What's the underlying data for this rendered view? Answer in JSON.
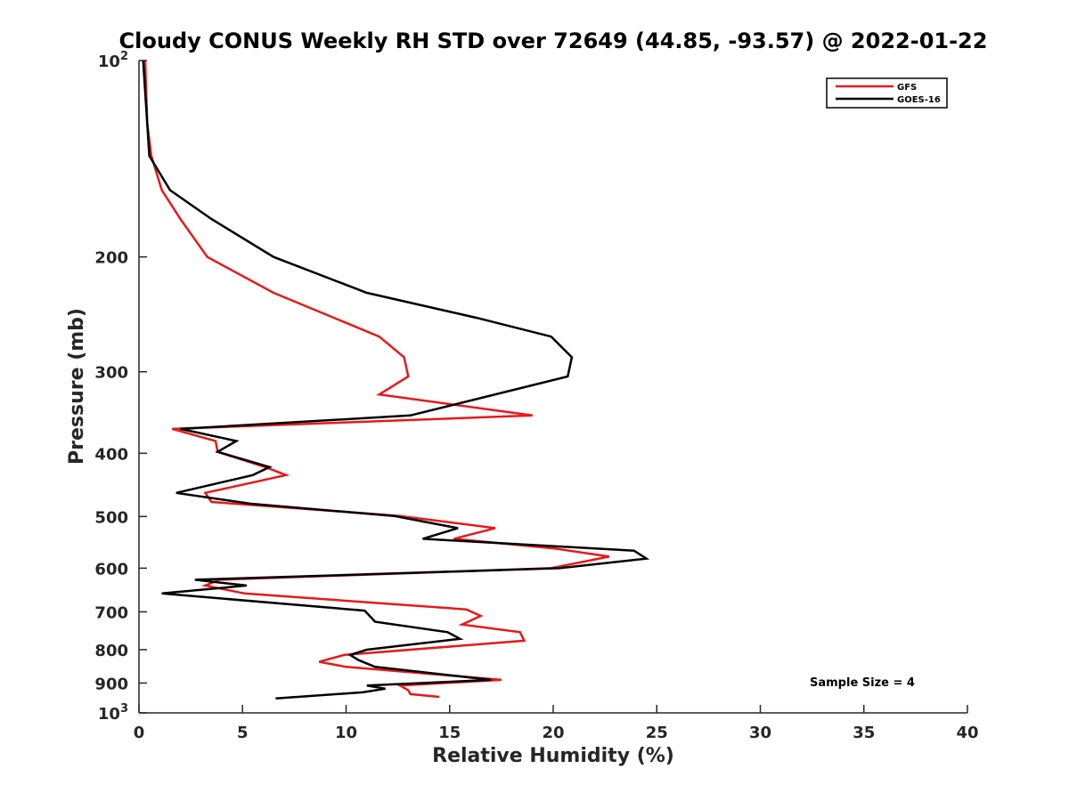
{
  "chart_data": {
    "type": "line",
    "title": "Cloudy CONUS Weekly RH STD over 72649 (44.85, -93.57) @ 2022-01-22",
    "xlabel": "Relative Humidity (%)",
    "ylabel": "Pressure (mb)",
    "xlim": [
      0,
      40
    ],
    "ylim": [
      100,
      1000
    ],
    "y_scale": "log",
    "y_reversed": true,
    "x_ticks": [
      "0",
      "5",
      "10",
      "15",
      "20",
      "25",
      "30",
      "35",
      "40"
    ],
    "y_ticks": [
      {
        "value": 100,
        "base": "10",
        "exp": "2"
      },
      {
        "value": 200,
        "label": "200"
      },
      {
        "value": 300,
        "label": "300"
      },
      {
        "value": 400,
        "label": "400"
      },
      {
        "value": 500,
        "label": "500"
      },
      {
        "value": 600,
        "label": "600"
      },
      {
        "value": 700,
        "label": "700"
      },
      {
        "value": 800,
        "label": "800"
      },
      {
        "value": 900,
        "label": "900"
      },
      {
        "value": 1000,
        "base": "10",
        "exp": "3"
      }
    ],
    "legend_position": "top-right",
    "annotation": "Sample Size = 4",
    "series": [
      {
        "name": "GFS",
        "color": "#e41a1c",
        "points": [
          [
            0.3,
            100
          ],
          [
            0.4,
            125
          ],
          [
            0.6,
            140
          ],
          [
            1.1,
            158
          ],
          [
            2.0,
            175
          ],
          [
            3.3,
            200
          ],
          [
            6.5,
            227
          ],
          [
            11.6,
            265
          ],
          [
            12.8,
            285
          ],
          [
            13.0,
            305
          ],
          [
            11.6,
            325
          ],
          [
            19.0,
            350
          ],
          [
            1.6,
            367
          ],
          [
            3.7,
            383
          ],
          [
            3.8,
            398
          ],
          [
            6.1,
            420
          ],
          [
            7.1,
            432
          ],
          [
            3.2,
            460
          ],
          [
            3.5,
            475
          ],
          [
            12.6,
            499
          ],
          [
            17.2,
            521
          ],
          [
            15.2,
            541
          ],
          [
            20.1,
            560
          ],
          [
            22.7,
            576
          ],
          [
            19.9,
            600
          ],
          [
            3.9,
            625
          ],
          [
            3.2,
            638
          ],
          [
            5.1,
            656
          ],
          [
            15.8,
            694
          ],
          [
            16.5,
            710
          ],
          [
            15.6,
            732
          ],
          [
            18.4,
            752
          ],
          [
            18.6,
            775
          ],
          [
            9.9,
            815
          ],
          [
            8.7,
            835
          ],
          [
            10.0,
            850
          ],
          [
            17.5,
            890
          ],
          [
            12.6,
            908
          ],
          [
            13.0,
            923
          ],
          [
            13.1,
            936
          ],
          [
            14.5,
            945
          ]
        ]
      },
      {
        "name": "GOES-16",
        "color": "#000000",
        "points": [
          [
            0.2,
            100
          ],
          [
            0.4,
            125
          ],
          [
            0.5,
            140
          ],
          [
            1.5,
            158
          ],
          [
            3.5,
            175
          ],
          [
            6.5,
            200
          ],
          [
            11.0,
            227
          ],
          [
            16.3,
            248
          ],
          [
            19.9,
            265
          ],
          [
            20.9,
            285
          ],
          [
            20.7,
            305
          ],
          [
            13.1,
            350
          ],
          [
            2.0,
            367
          ],
          [
            4.7,
            383
          ],
          [
            3.8,
            398
          ],
          [
            6.3,
            420
          ],
          [
            5.5,
            432
          ],
          [
            1.8,
            460
          ],
          [
            5.4,
            478
          ],
          [
            12.3,
            499
          ],
          [
            15.4,
            521
          ],
          [
            13.7,
            541
          ],
          [
            23.9,
            564
          ],
          [
            24.5,
            580
          ],
          [
            20.3,
            600
          ],
          [
            2.7,
            625
          ],
          [
            5.2,
            638
          ],
          [
            1.1,
            656
          ],
          [
            10.9,
            697
          ],
          [
            11.4,
            725
          ],
          [
            14.9,
            752
          ],
          [
            15.5,
            770
          ],
          [
            11.0,
            800
          ],
          [
            10.2,
            815
          ],
          [
            10.6,
            830
          ],
          [
            11.4,
            850
          ],
          [
            17.0,
            890
          ],
          [
            11.0,
            908
          ],
          [
            11.9,
            918
          ],
          [
            10.8,
            930
          ],
          [
            6.6,
            950
          ]
        ]
      }
    ]
  }
}
